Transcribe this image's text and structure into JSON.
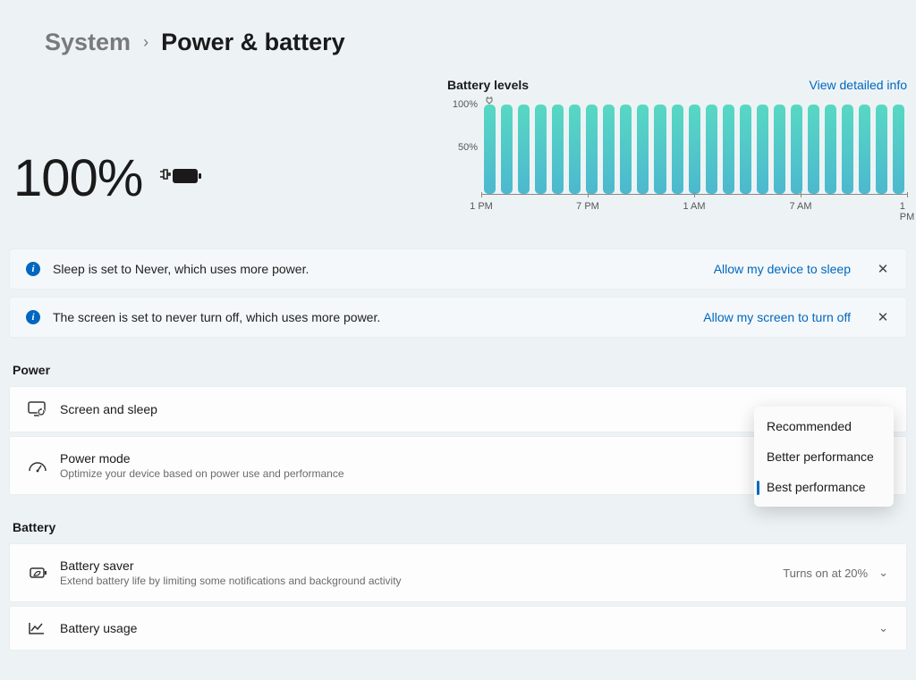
{
  "breadcrumb": {
    "parent": "System",
    "current": "Power & battery"
  },
  "battery": {
    "percent_label": "100%"
  },
  "chart": {
    "title": "Battery levels",
    "detail_link": "View detailed info",
    "y_labels": {
      "y100": "100%",
      "y50": "50%"
    },
    "x_labels": [
      "1 PM",
      "7 PM",
      "1 AM",
      "7 AM",
      "1 PM"
    ],
    "bar_count": 25,
    "bar_heights_pct": [
      100,
      100,
      100,
      100,
      100,
      100,
      100,
      100,
      100,
      100,
      100,
      100,
      100,
      100,
      100,
      100,
      100,
      100,
      100,
      100,
      100,
      100,
      100,
      100,
      100
    ],
    "bar_gradient_top": "#58d8c3",
    "bar_gradient_bottom": "#4cb8cf",
    "background": "#edf3f5"
  },
  "alerts": [
    {
      "message": "Sleep is set to Never, which uses more power.",
      "action": "Allow my device to sleep"
    },
    {
      "message": "The screen is set to never turn off, which uses more power.",
      "action": "Allow my screen to turn off"
    }
  ],
  "sections": {
    "power": {
      "header": "Power",
      "screen_sleep": {
        "label": "Screen and sleep"
      },
      "power_mode": {
        "label": "Power mode",
        "sub": "Optimize your device based on power use and performance",
        "dropdown": {
          "options": [
            "Recommended",
            "Better performance",
            "Best performance"
          ],
          "selected_index": 2
        }
      }
    },
    "battery": {
      "header": "Battery",
      "saver": {
        "label": "Battery saver",
        "sub": "Extend battery life by limiting some notifications and background activity",
        "value": "Turns on at 20%"
      },
      "usage": {
        "label": "Battery usage"
      }
    }
  },
  "colors": {
    "link": "#0067c0",
    "page_bg": "#edf3f5",
    "row_bg": "#fdfdfd",
    "text_muted": "#6b6b6b"
  }
}
